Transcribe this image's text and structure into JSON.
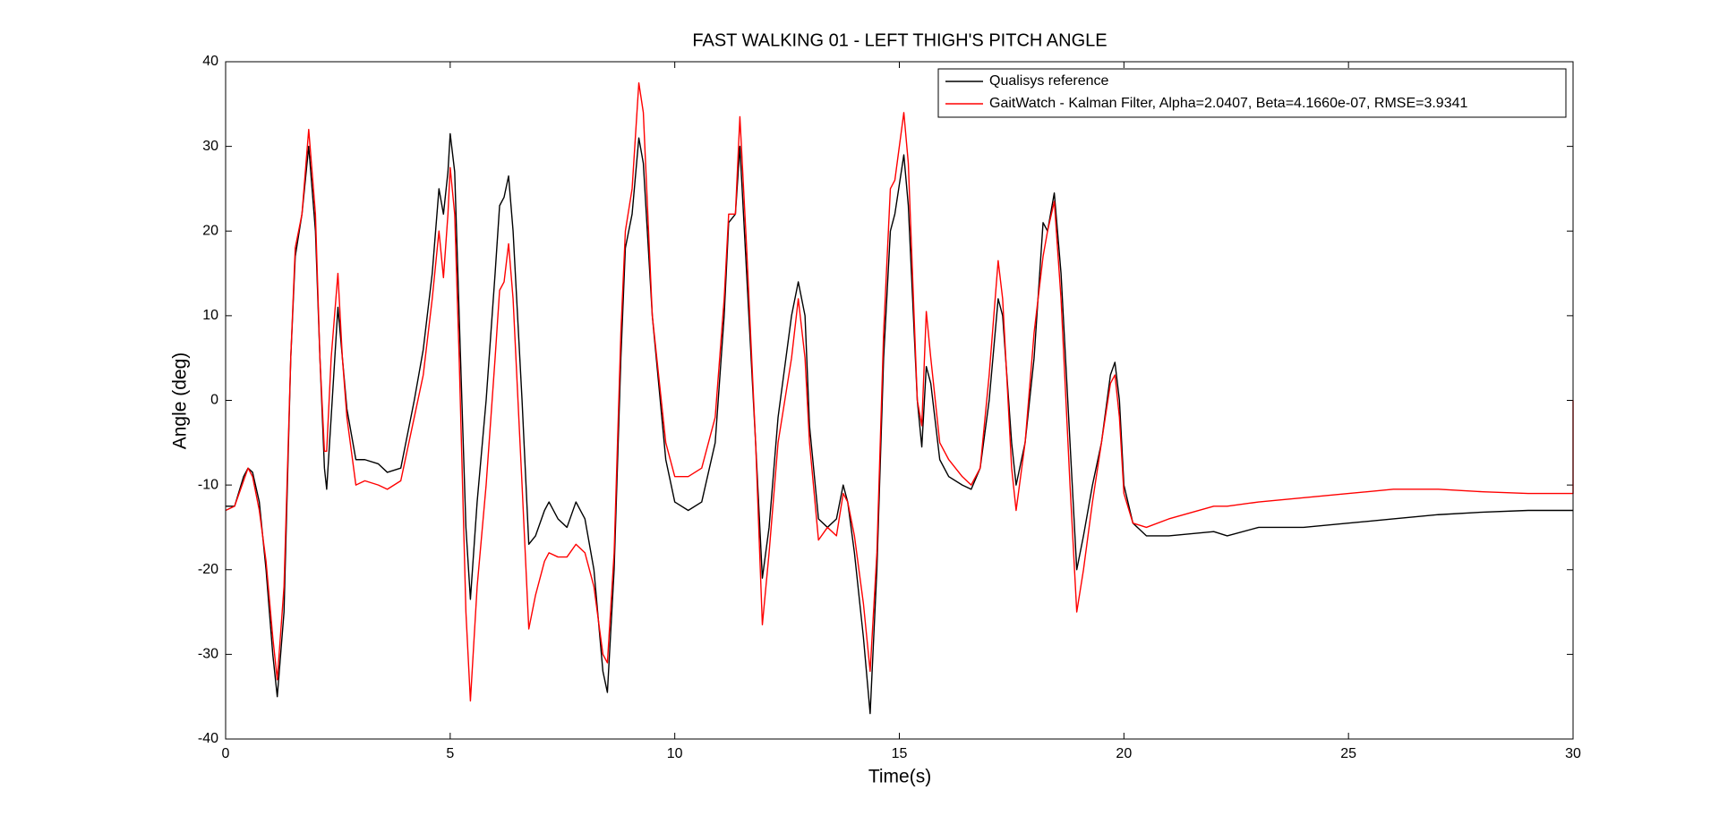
{
  "chart_data": {
    "type": "line",
    "title": "FAST WALKING 01 - LEFT THIGH'S PITCH ANGLE",
    "x_label": "Time(s)",
    "y_label": "Angle (deg)",
    "xlim": [
      0,
      30
    ],
    "xticks": [
      0,
      5,
      10,
      15,
      20,
      25,
      30
    ],
    "ylim": [
      -40,
      40
    ],
    "yticks": [
      -40,
      -30,
      -20,
      -10,
      0,
      10,
      20,
      30,
      40
    ],
    "grid": false,
    "legend": "upper right",
    "x": [
      0,
      0.2,
      0.4,
      0.5,
      0.6,
      0.75,
      0.9,
      1.05,
      1.15,
      1.3,
      1.45,
      1.55,
      1.7,
      1.85,
      2.0,
      2.1,
      2.2,
      2.25,
      2.35,
      2.5,
      2.6,
      2.7,
      2.9,
      3.1,
      3.4,
      3.6,
      3.9,
      4.2,
      4.4,
      4.6,
      4.75,
      4.85,
      4.95,
      5.0,
      5.1,
      5.2,
      5.35,
      5.45,
      5.6,
      5.8,
      6.0,
      6.1,
      6.2,
      6.3,
      6.4,
      6.6,
      6.75,
      6.9,
      7.1,
      7.2,
      7.4,
      7.6,
      7.8,
      8.0,
      8.2,
      8.4,
      8.5,
      8.65,
      8.8,
      8.9,
      9.05,
      9.2,
      9.3,
      9.5,
      9.8,
      10.0,
      10.3,
      10.6,
      10.9,
      11.1,
      11.2,
      11.35,
      11.45,
      11.6,
      11.8,
      11.95,
      12.1,
      12.3,
      12.6,
      12.75,
      12.9,
      13.0,
      13.2,
      13.4,
      13.6,
      13.75,
      13.85,
      14.0,
      14.2,
      14.35,
      14.5,
      14.65,
      14.8,
      14.9,
      15.1,
      15.2,
      15.4,
      15.5,
      15.6,
      15.7,
      15.9,
      16.1,
      16.4,
      16.6,
      16.8,
      17.0,
      17.2,
      17.3,
      17.5,
      17.6,
      17.8,
      18.0,
      18.2,
      18.3,
      18.45,
      18.6,
      18.8,
      18.95,
      19.1,
      19.3,
      19.5,
      19.7,
      19.8,
      19.9,
      20.0,
      20.2,
      20.5,
      21,
      22,
      22.3,
      23,
      24,
      25,
      26,
      27,
      28,
      29,
      30,
      30
    ],
    "series": [
      {
        "name": "Qualisys reference",
        "color": "#000000",
        "values": [
          -12.5,
          -12.5,
          -9,
          -8,
          -8.5,
          -12,
          -20,
          -30,
          -35,
          -25,
          5,
          17,
          22,
          30,
          20,
          5,
          -8,
          -10.5,
          -2,
          11,
          5,
          -1,
          -7,
          -7,
          -7.5,
          -8.5,
          -8,
          0,
          6,
          15,
          25,
          22,
          27,
          31.5,
          27,
          10,
          -15,
          -23.5,
          -12,
          0,
          15,
          23,
          24,
          26.5,
          20,
          0,
          -17,
          -16,
          -13,
          -12,
          -14,
          -15,
          -12,
          -14,
          -20,
          -32,
          -34.5,
          -20,
          5,
          18,
          22,
          31,
          28,
          10,
          -7,
          -12,
          -13,
          -12,
          -5,
          10,
          21,
          22,
          30,
          15,
          -5,
          -21,
          -15,
          -2,
          10,
          14,
          10,
          -3,
          -14,
          -15,
          -14,
          -10,
          -12,
          -18,
          -28,
          -37,
          -20,
          5,
          20,
          22,
          29,
          23,
          0,
          -5.5,
          4,
          2,
          -7,
          -9,
          -10,
          -10.5,
          -8,
          0,
          12,
          10,
          -5,
          -10,
          -5,
          5,
          21,
          20,
          24.5,
          15,
          -5,
          -20,
          -16,
          -10,
          -5,
          3,
          4.5,
          0,
          -10,
          -14.5,
          -16,
          -16,
          -15.5,
          -16,
          -15,
          -15,
          -14.5,
          -14,
          -13.5,
          -13.2,
          -13,
          -13,
          -13
        ]
      },
      {
        "name": "GaitWatch - Kalman Filter, Alpha=2.0407, Beta=4.1660e-07, RMSE=3.9341",
        "color": "#ff0000",
        "values": [
          -13,
          -12.5,
          -9.5,
          -8,
          -9,
          -13,
          -19,
          -28,
          -33,
          -22,
          5,
          18,
          22,
          32,
          22,
          5,
          -6,
          -6,
          5,
          15,
          5,
          -2,
          -10,
          -9.5,
          -10,
          -10.5,
          -9.5,
          -2,
          3,
          12,
          20,
          14.5,
          22,
          27.5,
          22,
          5,
          -25,
          -35.5,
          -22,
          -10,
          5,
          13,
          14,
          18.5,
          12,
          -10,
          -27,
          -23,
          -19,
          -18,
          -18.5,
          -18.5,
          -17,
          -18,
          -22,
          -30,
          -31,
          -18,
          8,
          20,
          25,
          37.5,
          34,
          10,
          -5,
          -9,
          -9,
          -8,
          -2,
          12,
          22,
          22,
          33.5,
          18,
          -5,
          -26.5,
          -18,
          -5,
          5,
          12,
          5,
          -5,
          -16.5,
          -15,
          -16,
          -11,
          -12,
          -16,
          -24,
          -32,
          -18,
          8,
          25,
          26,
          34,
          28,
          0,
          -3,
          10.5,
          5,
          -5,
          -7,
          -9,
          -10,
          -8,
          3,
          16.5,
          12,
          -8,
          -13,
          -5,
          8,
          17,
          20,
          23.5,
          12,
          -10,
          -25,
          -20,
          -12,
          -5,
          2,
          3,
          -2,
          -11,
          -14.5,
          -15,
          -14,
          -12.5,
          -12.5,
          -12,
          -11.5,
          -11,
          -10.5,
          -10.5,
          -10.8,
          -11,
          -11,
          0
        ]
      }
    ]
  }
}
